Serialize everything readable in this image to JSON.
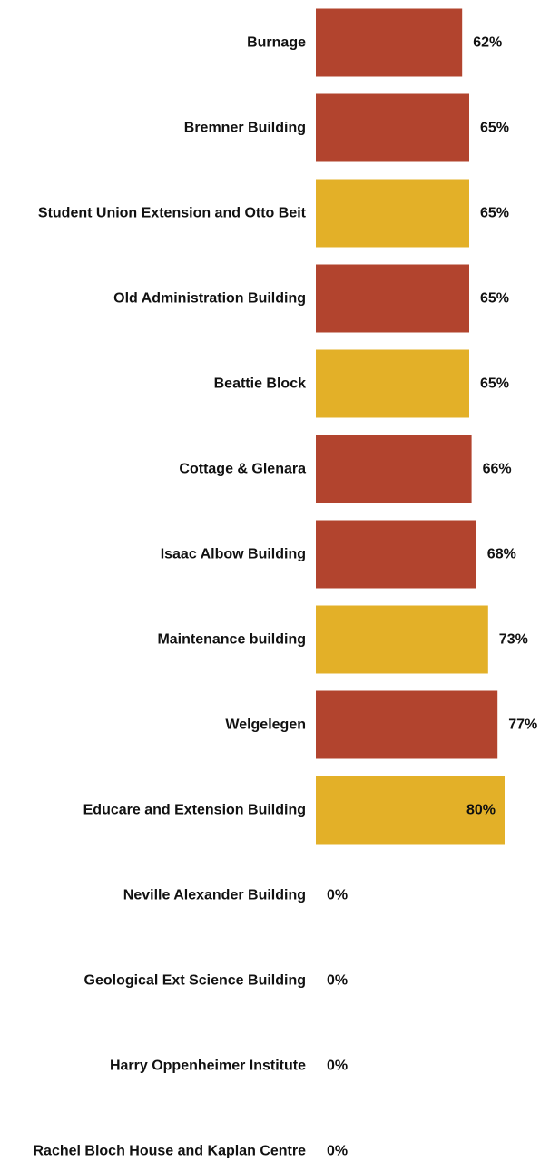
{
  "colors": {
    "red": "#b2442e",
    "yellow": "#e3b028",
    "text": "#111111"
  },
  "chart_data": {
    "type": "bar",
    "orientation": "horizontal",
    "grid": false,
    "xlim": [
      0,
      100
    ],
    "value_suffix": "%",
    "categories": [
      "Burnage",
      "Bremner Building",
      "Student Union Extension and Otto Beit",
      "Old Administration Building",
      "Beattie Block",
      "Cottage & Glenara",
      "Isaac Albow Building",
      "Maintenance building",
      "Welgelegen",
      "Educare and Extension Building",
      "Neville Alexander Building",
      "Geological Ext Science Building",
      "Harry Oppenheimer Institute",
      "Rachel Bloch House and Kaplan Centre"
    ],
    "values": [
      62,
      65,
      65,
      65,
      65,
      66,
      68,
      73,
      77,
      80,
      0,
      0,
      0,
      0
    ],
    "bar_colors": [
      "red",
      "red",
      "yellow",
      "red",
      "yellow",
      "red",
      "red",
      "yellow",
      "red",
      "yellow",
      "red",
      "red",
      "red",
      "red"
    ]
  }
}
